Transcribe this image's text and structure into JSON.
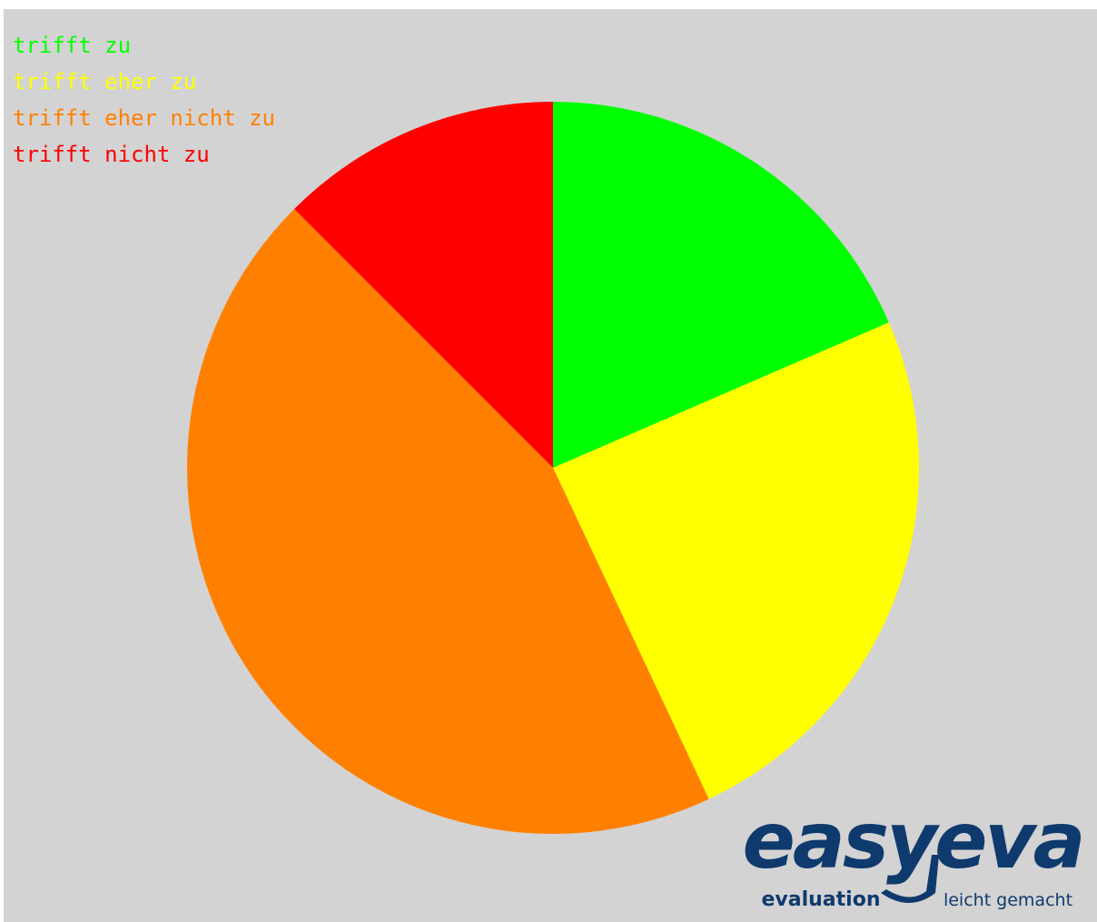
{
  "chart_data": {
    "type": "pie",
    "categories": [
      "trifft zu",
      "trifft eher zu",
      "trifft eher nicht zu",
      "trifft nicht zu"
    ],
    "values": [
      18.5,
      24.5,
      44.5,
      12.5
    ],
    "colors": [
      "#00ff00",
      "#ffff00",
      "#ff8000",
      "#ff0000"
    ],
    "start": "12 o'clock",
    "direction": "clockwise",
    "legend_position": "top-left"
  },
  "background_color": "#d3d3d3",
  "logo": {
    "wordmark": "easyeva",
    "tagline_left": "evaluation",
    "tagline_right": "leicht gemacht",
    "color": "#0f3a6e"
  }
}
